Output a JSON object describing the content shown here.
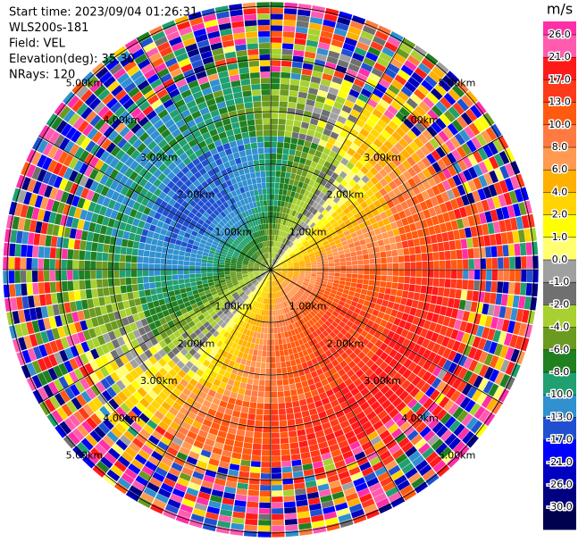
{
  "header": {
    "lines": [
      "Start time: 2023/09/04 01:26:31",
      "WLS200s-181",
      "Field: VEL",
      "Elevation(deg): 35.30",
      "NRays: 120"
    ]
  },
  "range_labels": [
    "1.00km",
    "2.00km",
    "3.00km",
    "4.00km",
    "5.00km"
  ],
  "colorbar": {
    "unit": "m/s",
    "ticks": [
      {
        "value": 26,
        "label": "26.0"
      },
      {
        "value": 21,
        "label": "21.0"
      },
      {
        "value": 17,
        "label": "17.0"
      },
      {
        "value": 13,
        "label": "13.0"
      },
      {
        "value": 10,
        "label": "10.0"
      },
      {
        "value": 8,
        "label": "8.0"
      },
      {
        "value": 6,
        "label": "6.0"
      },
      {
        "value": 4,
        "label": "4.0"
      },
      {
        "value": 2,
        "label": "2.0"
      },
      {
        "value": 1,
        "label": "1.0"
      },
      {
        "value": 0,
        "label": "0.0"
      },
      {
        "value": -1,
        "label": "-1.0"
      },
      {
        "value": -2,
        "label": "-2.0"
      },
      {
        "value": -4,
        "label": "-4.0"
      },
      {
        "value": -6,
        "label": "-6.0"
      },
      {
        "value": -8,
        "label": "-8.0"
      },
      {
        "value": -10,
        "label": "-10.0"
      },
      {
        "value": -13,
        "label": "-13.0"
      },
      {
        "value": -17,
        "label": "-17.0"
      },
      {
        "value": -21,
        "label": "-21.0"
      },
      {
        "value": -26,
        "label": "-26.0"
      },
      {
        "value": -30,
        "label": "-30.0"
      }
    ],
    "colors": [
      "#ff2fa8",
      "#ff5cb0",
      "#ff1a1a",
      "#ff3a1a",
      "#ff5a10",
      "#ff7a40",
      "#ff9a50",
      "#ffb000",
      "#ffd400",
      "#ffff00",
      "#ffff70",
      "#a0a0a0",
      "#707070",
      "#a8d030",
      "#6a9a20",
      "#208020",
      "#20a070",
      "#3090d0",
      "#2050d0",
      "#0000ff",
      "#0000c0",
      "#000080",
      "#000050"
    ]
  }
}
